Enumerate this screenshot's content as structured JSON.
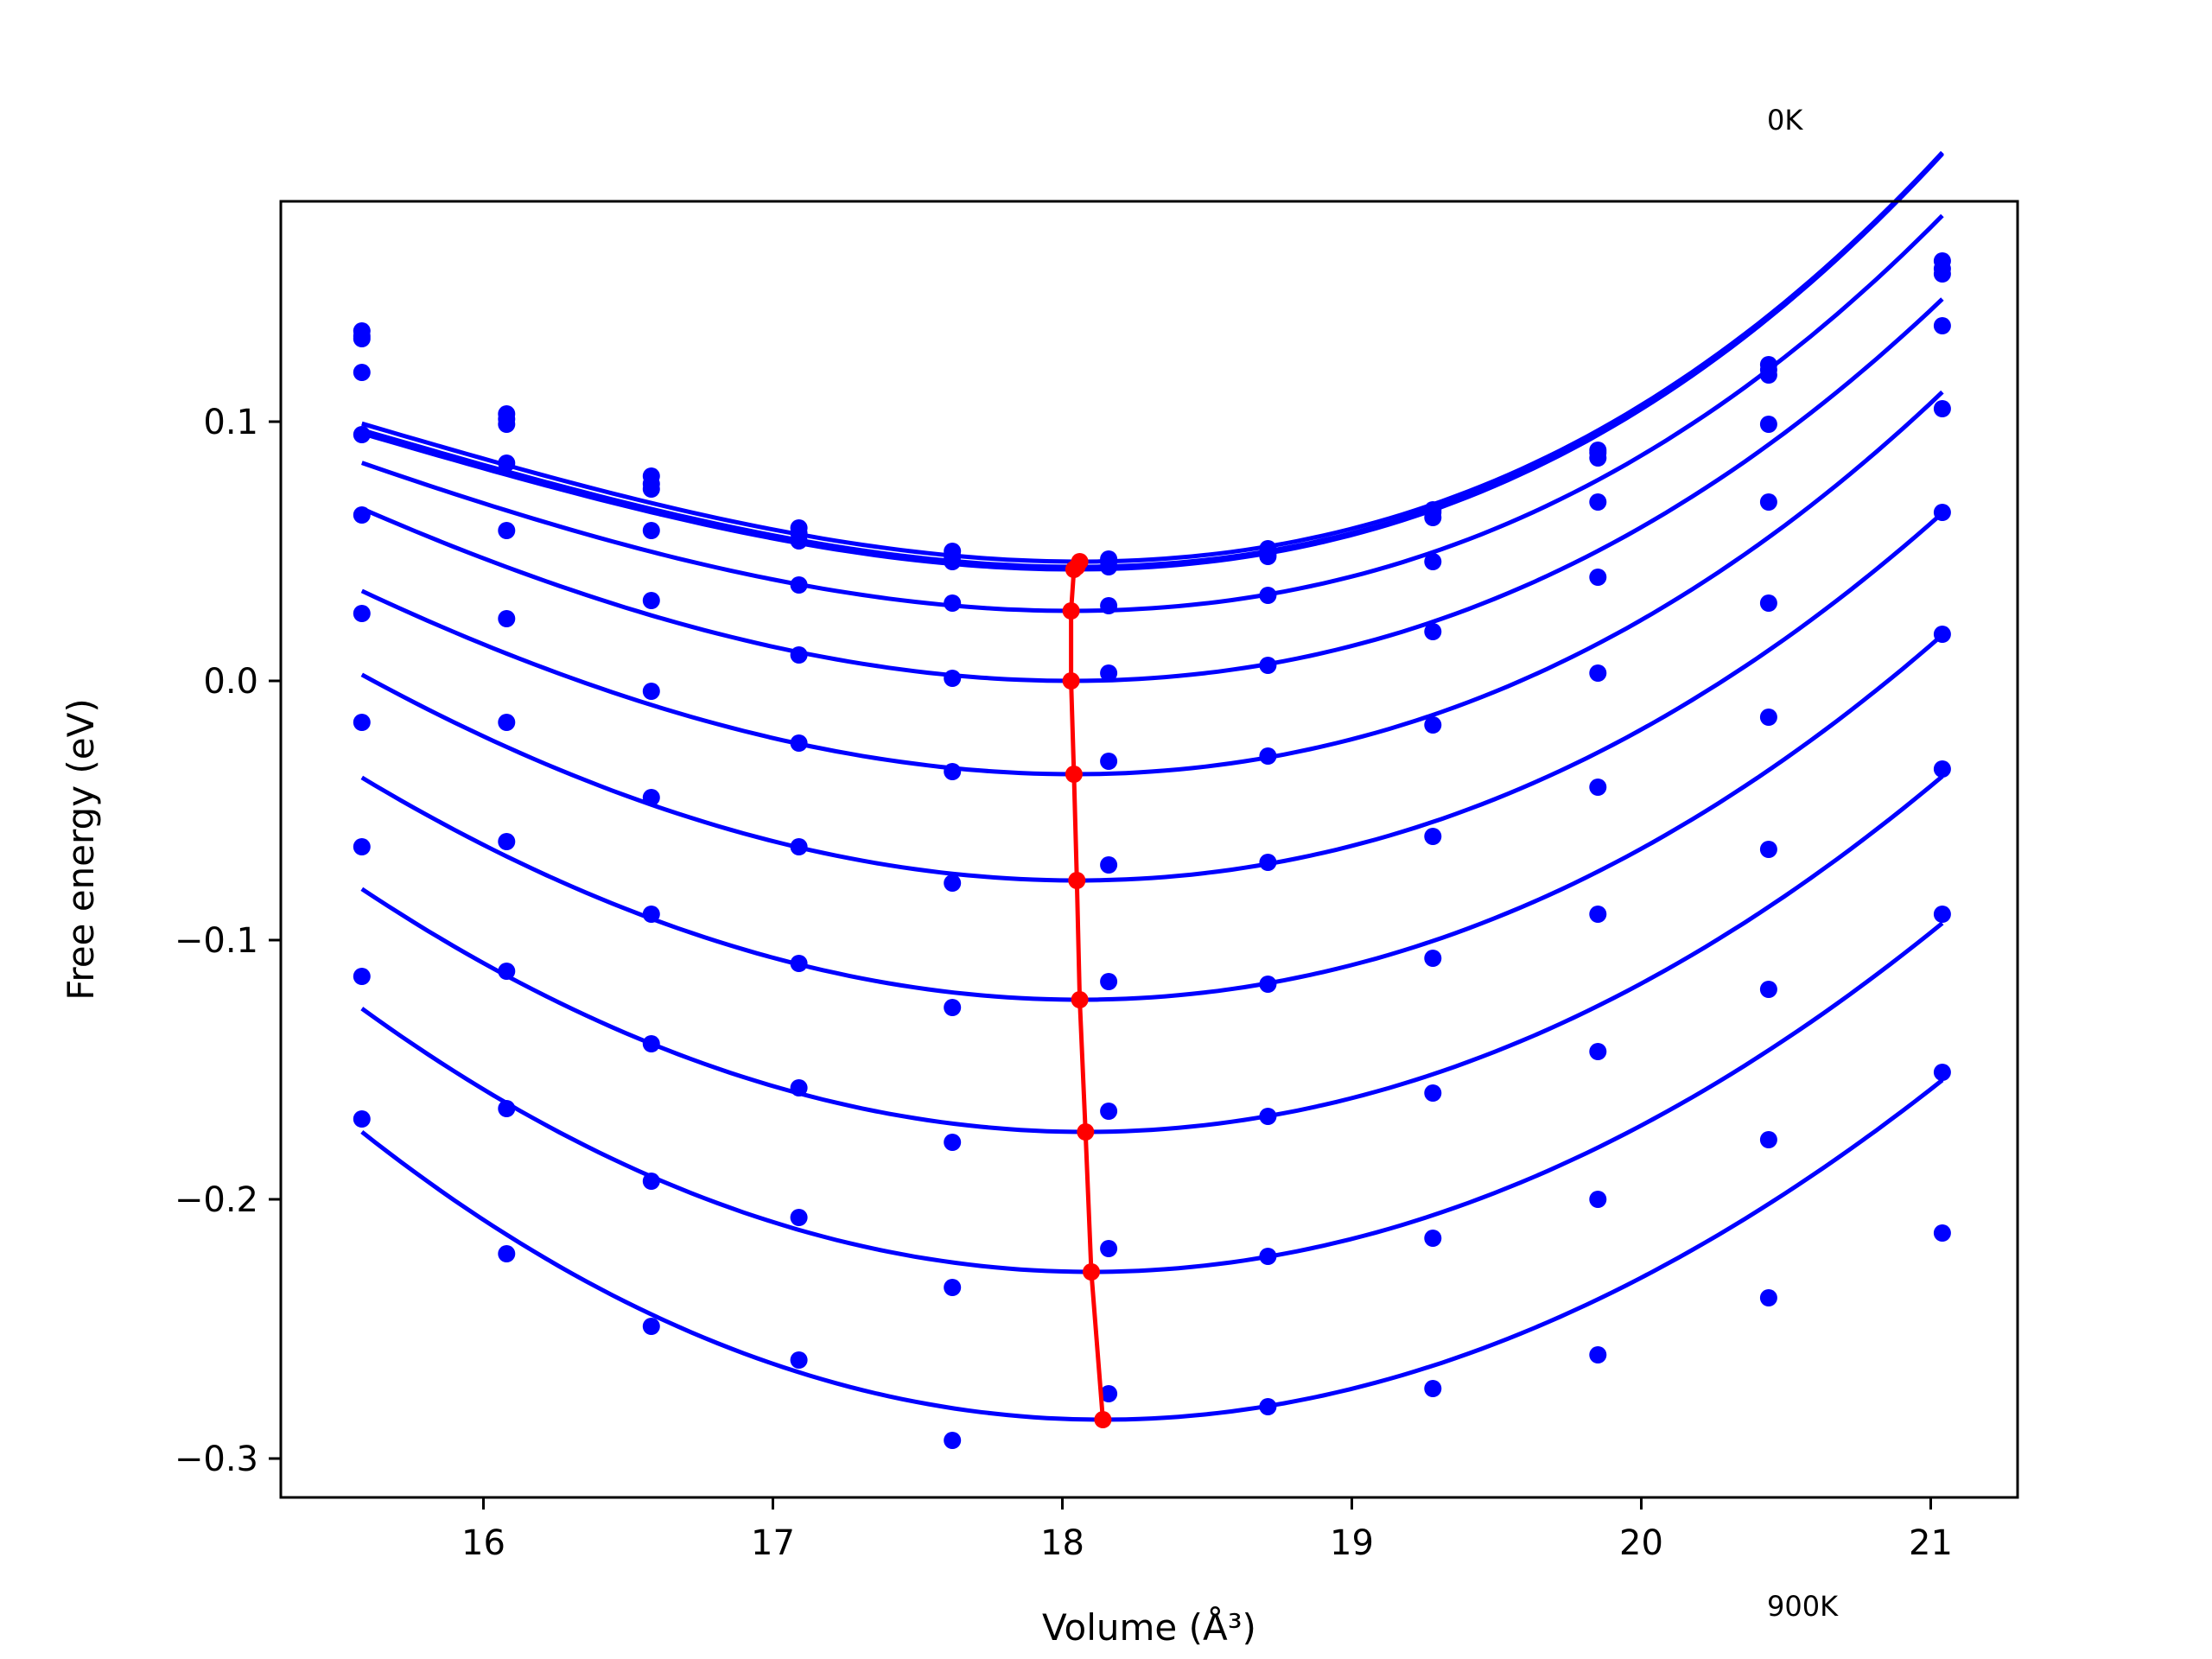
{
  "chart_data": {
    "type": "line",
    "title": "",
    "xlabel": "Volume (Å³)",
    "ylabel": "Free energy (eV)",
    "xlim": [
      15.3,
      21.3
    ],
    "ylim": [
      -0.315,
      0.185
    ],
    "xticks": [
      16,
      17,
      18,
      19,
      20,
      21
    ],
    "yticks": [
      0.1,
      0.0,
      -0.1,
      -0.2,
      -0.3
    ],
    "xtick_labels": [
      "16",
      "17",
      "18",
      "19",
      "20",
      "21"
    ],
    "ytick_labels": [
      "0.1",
      "0.0",
      "−0.1",
      "−0.2",
      "−0.3"
    ],
    "grid": false,
    "annotations": [
      {
        "text": "0K"
      },
      {
        "text": "900K"
      }
    ],
    "x": [
      15.58,
      16.08,
      16.58,
      17.09,
      17.62,
      18.16,
      18.71,
      19.28,
      19.85,
      20.44,
      21.04
    ],
    "series": [
      {
        "points": [
          0.133,
          0.103,
          0.079,
          0.059,
          0.05,
          0.047,
          0.051,
          0.066,
          0.089,
          0.122,
          0.162
        ],
        "fit": {
          "v0": 18.06,
          "e0": 0.046,
          "a": 0.0128,
          "b": 0.00167
        }
      },
      {
        "points": [
          0.135,
          0.101,
          0.076,
          0.057,
          0.048,
          0.046,
          0.049,
          0.065,
          0.088,
          0.12,
          0.159
        ],
        "fit": {
          "v0": 18.05,
          "e0": 0.044,
          "a": 0.0128,
          "b": 0.00168
        }
      },
      {
        "points": [
          0.132,
          0.099,
          0.074,
          0.054,
          0.046,
          0.044,
          0.048,
          0.063,
          0.086,
          0.118,
          0.157
        ],
        "fit": {
          "v0": 18.04,
          "e0": 0.043,
          "a": 0.0128,
          "b": 0.00168
        }
      },
      {
        "points": [
          0.119,
          0.084,
          0.058,
          0.037,
          0.03,
          0.029,
          0.033,
          0.046,
          0.069,
          0.099,
          0.137
        ],
        "fit": {
          "v0": 18.03,
          "e0": 0.027,
          "a": 0.0128,
          "b": 0.00134
        }
      },
      {
        "points": [
          0.095,
          0.058,
          0.031,
          0.01,
          0.001,
          0.003,
          0.006,
          0.019,
          0.04,
          0.069,
          0.105
        ],
        "fit": {
          "v0": 18.03,
          "e0": 0.0,
          "a": 0.0134,
          "b": 0.00095
        }
      },
      {
        "points": [
          0.064,
          0.024,
          -0.004,
          -0.024,
          -0.035,
          -0.031,
          -0.029,
          -0.017,
          0.003,
          0.03,
          0.065
        ],
        "fit": {
          "v0": 18.04,
          "e0": -0.036,
          "a": 0.0138,
          "b": 0.00086
        }
      },
      {
        "points": [
          0.026,
          -0.016,
          -0.045,
          -0.064,
          -0.078,
          -0.071,
          -0.07,
          -0.06,
          -0.041,
          -0.014,
          0.018
        ],
        "fit": {
          "v0": 18.05,
          "e0": -0.077,
          "a": 0.0143,
          "b": 0.00052
        }
      },
      {
        "points": [
          -0.016,
          -0.062,
          -0.09,
          -0.109,
          -0.126,
          -0.116,
          -0.117,
          -0.107,
          -0.09,
          -0.065,
          -0.034
        ],
        "fit": {
          "v0": 18.06,
          "e0": -0.123,
          "a": 0.0148,
          "b": 0.00035
        }
      },
      {
        "points": [
          -0.064,
          -0.112,
          -0.14,
          -0.157,
          -0.178,
          -0.166,
          -0.168,
          -0.159,
          -0.143,
          -0.119,
          -0.09
        ],
        "fit": {
          "v0": 18.08,
          "e0": -0.174,
          "a": 0.0153,
          "b": 0.00012
        }
      },
      {
        "points": [
          -0.114,
          -0.165,
          -0.193,
          -0.207,
          -0.234,
          -0.219,
          -0.222,
          -0.215,
          -0.2,
          -0.177,
          -0.151
        ],
        "fit": {
          "v0": 18.1,
          "e0": -0.228,
          "a": 0.0158,
          "b": -8e-05
        }
      },
      {
        "points": [
          -0.169,
          -0.221,
          -0.249,
          -0.262,
          -0.293,
          -0.275,
          -0.28,
          -0.273,
          -0.26,
          -0.238,
          -0.213
        ],
        "fit": {
          "v0": 18.14,
          "e0": -0.285,
          "a": 0.0163,
          "b": -0.00025
        }
      }
    ],
    "minima": {
      "x": [
        18.06,
        18.05,
        18.04,
        18.03,
        18.03,
        18.04,
        18.05,
        18.06,
        18.08,
        18.1,
        18.14
      ],
      "y": [
        0.046,
        0.044,
        0.043,
        0.027,
        0.0,
        -0.036,
        -0.077,
        -0.123,
        -0.174,
        -0.228,
        -0.285
      ]
    },
    "colors": {
      "series": "#0000ff",
      "minima": "#ff0000",
      "axes": "#000000"
    }
  }
}
